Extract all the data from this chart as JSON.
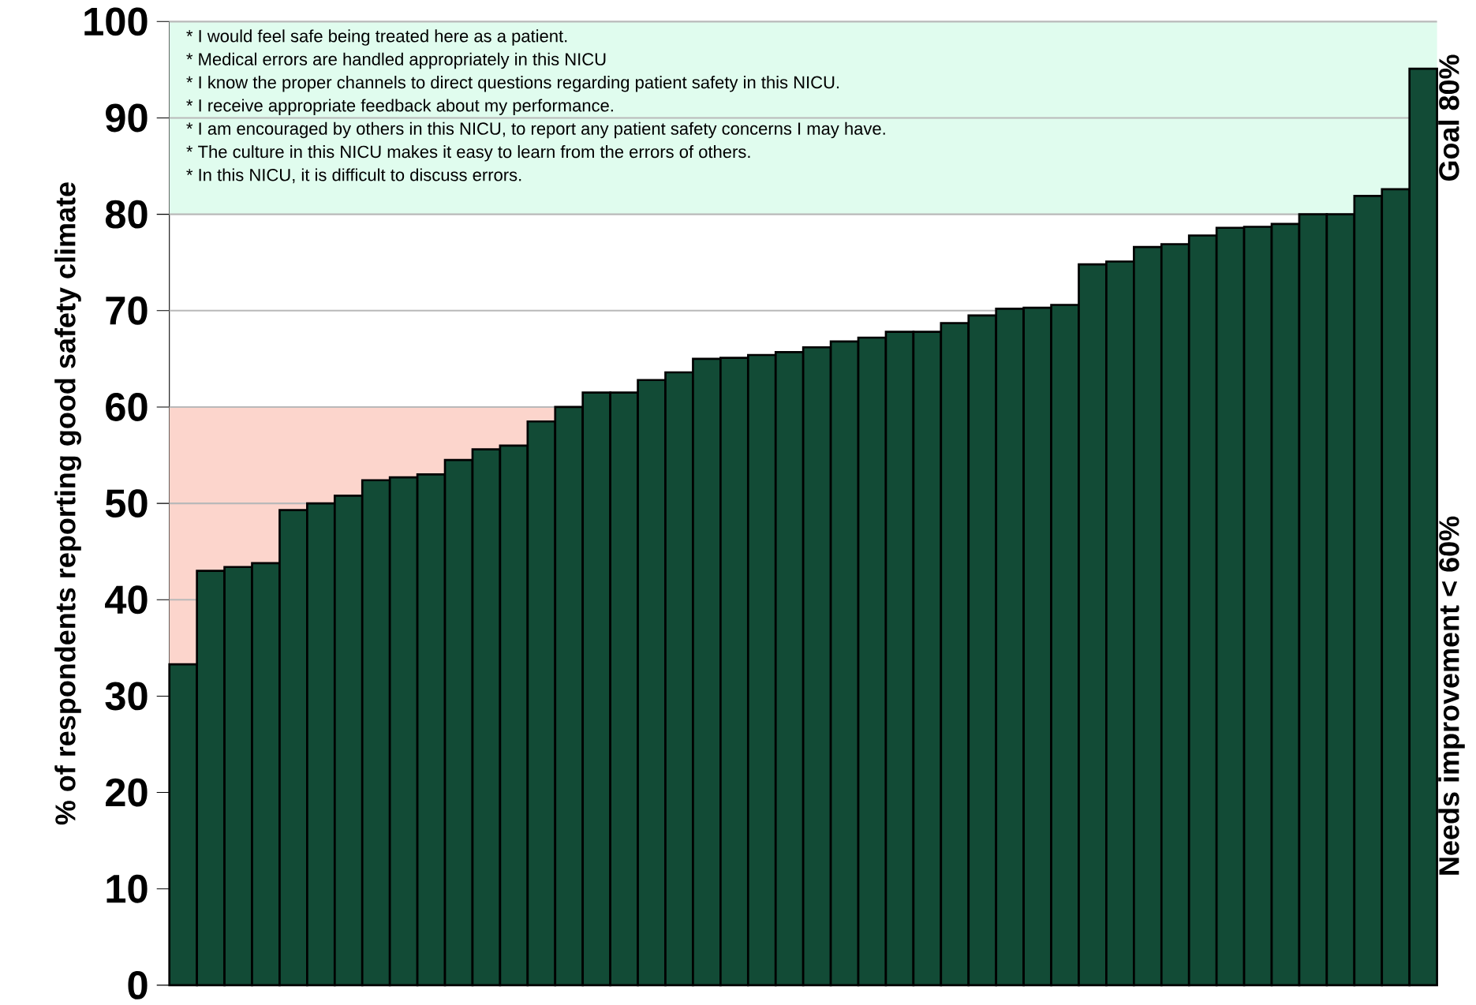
{
  "chart_data": {
    "type": "bar",
    "ylabel": "% of respondents reporting good safety climate",
    "categories": [
      null,
      null,
      null,
      null,
      null,
      null,
      null,
      null,
      null,
      null,
      null,
      null,
      null,
      null,
      null,
      null,
      null,
      null,
      null,
      null,
      null,
      null,
      null,
      null,
      null,
      null,
      null,
      null,
      null,
      null,
      null,
      null,
      null,
      null,
      null,
      null,
      null,
      null,
      null,
      null,
      null,
      null,
      null,
      null,
      null,
      null
    ],
    "values": [
      33.3,
      43,
      43.4,
      43.8,
      49.3,
      50,
      50.8,
      52.4,
      52.7,
      53,
      54.5,
      55.6,
      56,
      58.5,
      60,
      61.5,
      61.5,
      62.8,
      63.6,
      65,
      65.1,
      65.4,
      65.7,
      66.2,
      66.8,
      67.2,
      67.8,
      67.8,
      68.7,
      69.5,
      70.2,
      70.3,
      70.6,
      74.8,
      75.1,
      76.6,
      76.9,
      77.8,
      78.6,
      78.7,
      79,
      80,
      80,
      81.9,
      82.6,
      95.1
    ],
    "color": "#124b36",
    "ylim": [
      0,
      100
    ],
    "yticks": [
      0,
      10,
      20,
      30,
      40,
      50,
      60,
      70,
      80,
      90,
      100
    ],
    "grid": "y",
    "bands": [
      {
        "axis": "y",
        "from": 0,
        "to": 60,
        "label": "Needs improvement < 60%",
        "color": "#fcd5cc"
      },
      {
        "axis": "y",
        "from": 80,
        "to": 100,
        "label": "Goal 80%",
        "color": "#e0fcee"
      }
    ],
    "annotations": [
      "* I would feel safe being treated here as a patient.",
      "* Medical errors are handled appropriately in this NICU",
      "* I know the proper channels to direct questions regarding patient safety in this NICU.",
      "* I receive appropriate feedback about my performance.",
      "* I am encouraged by others in this NICU, to report any patient safety concerns I may have.",
      "* The culture in this NICU makes it easy to learn from the errors of others.",
      "* In this NICU, it is difficult to discuss errors."
    ]
  }
}
